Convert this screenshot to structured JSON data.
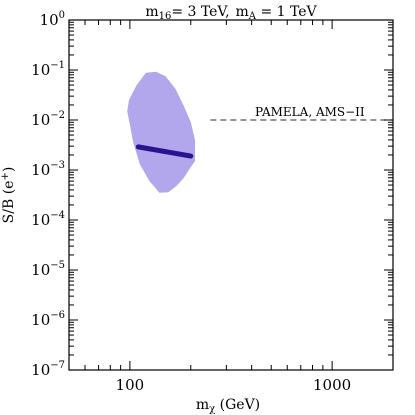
{
  "chart_data": {
    "type": "area",
    "title": "m16= 3 TeV, mA = 1 TeV",
    "title_parts": {
      "m1": "m",
      "m1_sub": "16",
      "v1": "= 3 TeV,",
      "m2": "m",
      "m2_sub": "A",
      "v2": " = 1 TeV"
    },
    "xlabel": "mχ (GeV)",
    "xlabel_parts": {
      "base": "m",
      "sub": "χ",
      "rest": " (GeV)"
    },
    "ylabel": "S/B (e+)",
    "ylabel_parts": {
      "base": "S/B (e",
      "sup": "+",
      "close": ")"
    },
    "xscale": "log",
    "yscale": "log",
    "xlim": [
      50,
      2000
    ],
    "ylim": [
      1e-07,
      1
    ],
    "x_ticklabels": [
      {
        "value": 100,
        "label": "100"
      },
      {
        "value": 1000,
        "label": "1000"
      }
    ],
    "y_ticklabels": [
      {
        "value": 1,
        "base": "10",
        "exp": "0"
      },
      {
        "value": 0.1,
        "base": "10",
        "exp": "−1"
      },
      {
        "value": 0.01,
        "base": "10",
        "exp": "−2"
      },
      {
        "value": 0.001,
        "base": "10",
        "exp": "−3"
      },
      {
        "value": 0.0001,
        "base": "10",
        "exp": "−4"
      },
      {
        "value": 1e-05,
        "base": "10",
        "exp": "−5"
      },
      {
        "value": 1e-06,
        "base": "10",
        "exp": "−6"
      },
      {
        "value": 1e-07,
        "base": "10",
        "exp": "−7"
      }
    ],
    "region": {
      "color": "#b2a7ec",
      "points": [
        [
          99,
          0.025
        ],
        [
          108,
          0.05
        ],
        [
          120,
          0.088
        ],
        [
          135,
          0.092
        ],
        [
          150,
          0.075
        ],
        [
          168,
          0.042
        ],
        [
          185,
          0.019
        ],
        [
          200,
          0.009
        ],
        [
          210,
          0.004
        ],
        [
          210,
          0.0015
        ],
        [
          200,
          0.00115
        ],
        [
          185,
          0.0007
        ],
        [
          170,
          0.00048
        ],
        [
          155,
          0.00036
        ],
        [
          140,
          0.00035
        ],
        [
          125,
          0.0006
        ],
        [
          112,
          0.0013
        ],
        [
          104,
          0.0035
        ],
        [
          100,
          0.008
        ],
        [
          97,
          0.015
        ]
      ]
    },
    "band": {
      "color": "#2a1290",
      "points": [
        [
          110,
          0.0029
        ],
        [
          200,
          0.0019
        ]
      ]
    },
    "reference_line": {
      "label": "PAMELA, AMS−II",
      "y": 0.01,
      "x_range": [
        250,
        2000
      ],
      "style": "dashed",
      "color": "#555555"
    }
  }
}
